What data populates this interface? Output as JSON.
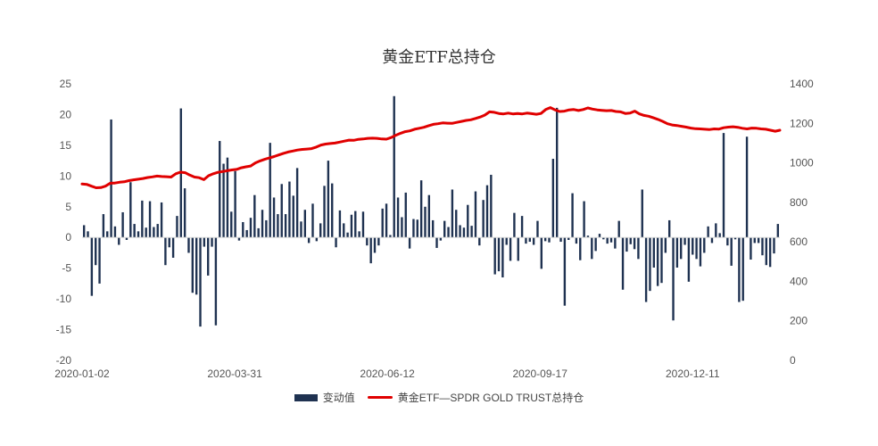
{
  "chart_data": {
    "type": "bar+line",
    "title": "黄金ETF总持仓",
    "x_ticks": [
      "2020-01-02",
      "2020-03-31",
      "2020-06-12",
      "2020-09-17",
      "2020-12-11"
    ],
    "left_axis": {
      "ticks": [
        25,
        20,
        15,
        10,
        5,
        0,
        -5,
        -10,
        -15,
        -20
      ],
      "ylim": [
        -20,
        25
      ]
    },
    "right_axis": {
      "ticks": [
        1400,
        1200,
        1000,
        800,
        600,
        400,
        200,
        0
      ],
      "ylim": [
        0,
        1400
      ]
    },
    "grid": false,
    "legend_position": "bottom",
    "series": [
      {
        "name": "变动值",
        "type": "bar",
        "axis": "left",
        "color": "#1f3251",
        "values": [
          2,
          1,
          -9.5,
          -4.5,
          -7.5,
          3.8,
          1,
          19.2,
          1.8,
          -1.2,
          4.1,
          -0.4,
          9,
          2.2,
          1,
          6,
          1.6,
          5.9,
          1.7,
          2.2,
          5.7,
          -4.5,
          -1.6,
          -3.3,
          3.5,
          21,
          8,
          -2.5,
          -9,
          -9.3,
          -14.5,
          -1.5,
          -6.2,
          -1.5,
          -14.3,
          15.7,
          12,
          13,
          4.2,
          10.8,
          -0.5,
          2.5,
          1.2,
          3.2,
          6.9,
          1.5,
          4.5,
          2.8,
          15.4,
          6.5,
          3.8,
          8.7,
          3.8,
          9.1,
          6.8,
          11.3,
          2.6,
          4.5,
          -0.9,
          5.5,
          -0.6,
          2.3,
          8.4,
          12.5,
          8.8,
          -1.6,
          4.4,
          2.3,
          0.8,
          3.7,
          4.3,
          1,
          4.2,
          -1.3,
          -4.2,
          -2.5,
          -1.3,
          4.7,
          5.5,
          0.4,
          23,
          6.5,
          3.3,
          7.3,
          -1.8,
          3,
          2.9,
          9.3,
          5,
          6.9,
          2.8,
          -1.7,
          -0.5,
          2.7,
          1.7,
          7.8,
          4.5,
          2,
          1.6,
          5.3,
          1.9,
          7.5,
          -1.3,
          6.1,
          8.5,
          10.2,
          -6,
          -5.5,
          -6.5,
          -1.2,
          -3.8,
          4,
          -3.8,
          3.5,
          -1,
          -0.7,
          -1.2,
          2.7,
          -5.1,
          -0.6,
          -0.8,
          12.8,
          21.1,
          -0.7,
          -11.1,
          -0.4,
          7.2,
          -1,
          -3.7,
          5.9,
          0.3,
          -3.5,
          -2.2,
          0.6,
          -0.3,
          -1,
          -0.8,
          -1.8,
          2.7,
          -8.5,
          -2.3,
          -1.1,
          -1.9,
          -3.5,
          7.8,
          -10.5,
          -8.7,
          -4.9,
          -7.9,
          -7.4,
          -2.5,
          2.8,
          -13.5,
          -4.9,
          -3.5,
          -1.2,
          -7.2,
          -2.8,
          -3.5,
          -4.7,
          -2.5,
          1.8,
          -0.9,
          2.3,
          0.7,
          17,
          -1.3,
          -4.6,
          -0.3,
          -10.5,
          -10.3,
          16.4,
          -3.6,
          -0.9,
          -0.9,
          -2.9,
          -4.5,
          -4.8,
          -2.6,
          2.2
        ]
      },
      {
        "name": "黄金ETF—SPDR GOLD TRUST总持仓",
        "type": "line",
        "axis": "right",
        "color": "#e00000",
        "values": [
          893,
          891,
          882,
          874,
          875,
          882,
          897,
          898,
          902,
          904,
          910,
          914,
          917,
          921,
          926,
          929,
          933,
          931,
          930,
          928,
          945,
          953,
          950,
          938,
          928,
          925,
          915,
          935,
          945,
          952,
          956,
          960,
          964,
          967,
          975,
          980,
          984,
          1000,
          1010,
          1018,
          1025,
          1032,
          1040,
          1048,
          1055,
          1060,
          1065,
          1068,
          1070,
          1072,
          1080,
          1090,
          1095,
          1098,
          1100,
          1105,
          1110,
          1115,
          1114,
          1119,
          1121,
          1124,
          1125,
          1124,
          1121,
          1120,
          1128,
          1140,
          1150,
          1158,
          1162,
          1170,
          1175,
          1180,
          1188,
          1195,
          1198,
          1202,
          1201,
          1200,
          1205,
          1210,
          1215,
          1218,
          1225,
          1232,
          1242,
          1258,
          1256,
          1250,
          1248,
          1252,
          1248,
          1250,
          1248,
          1252,
          1249,
          1246,
          1250,
          1270,
          1280,
          1268,
          1260,
          1262,
          1268,
          1270,
          1265,
          1270,
          1278,
          1272,
          1268,
          1266,
          1264,
          1265,
          1260,
          1258,
          1250,
          1252,
          1262,
          1248,
          1240,
          1236,
          1228,
          1220,
          1210,
          1198,
          1192,
          1189,
          1185,
          1181,
          1176,
          1173,
          1172,
          1170,
          1169,
          1172,
          1171,
          1178,
          1181,
          1183,
          1180,
          1175,
          1172,
          1176,
          1175,
          1172,
          1170,
          1165,
          1160,
          1165
        ]
      }
    ]
  },
  "legend": [
    {
      "label": "变动值"
    },
    {
      "label": "黄金ETF—SPDR GOLD TRUST总持仓"
    }
  ]
}
